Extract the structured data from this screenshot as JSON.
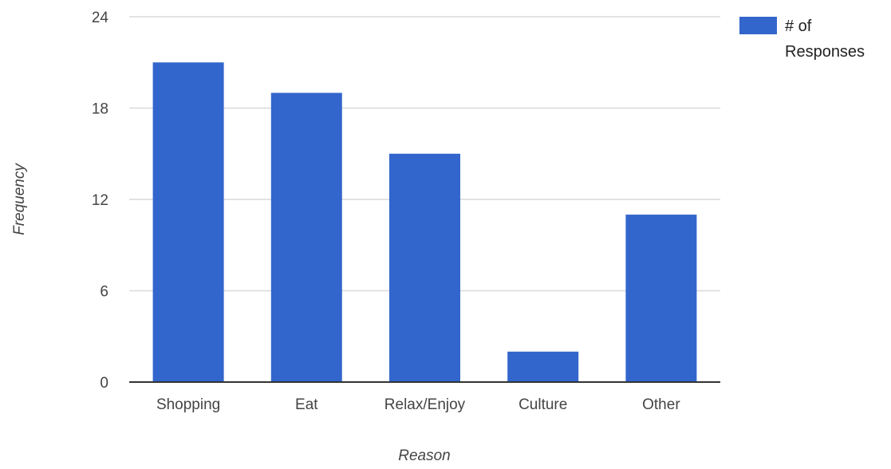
{
  "chart_data": {
    "type": "bar",
    "title": "",
    "xlabel": "Reason",
    "ylabel": "Frequency",
    "categories": [
      "Shopping",
      "Eat",
      "Relax/Enjoy",
      "Culture",
      "Other"
    ],
    "series": [
      {
        "name": "# of Responses",
        "values": [
          21,
          19,
          15,
          2,
          11
        ],
        "color": "#3366cc"
      }
    ],
    "ylim": [
      0,
      24
    ],
    "yticks": [
      0,
      6,
      12,
      18,
      24
    ],
    "grid": true,
    "legend_position": "right",
    "legend_lines": [
      "# of",
      "Responses"
    ]
  }
}
